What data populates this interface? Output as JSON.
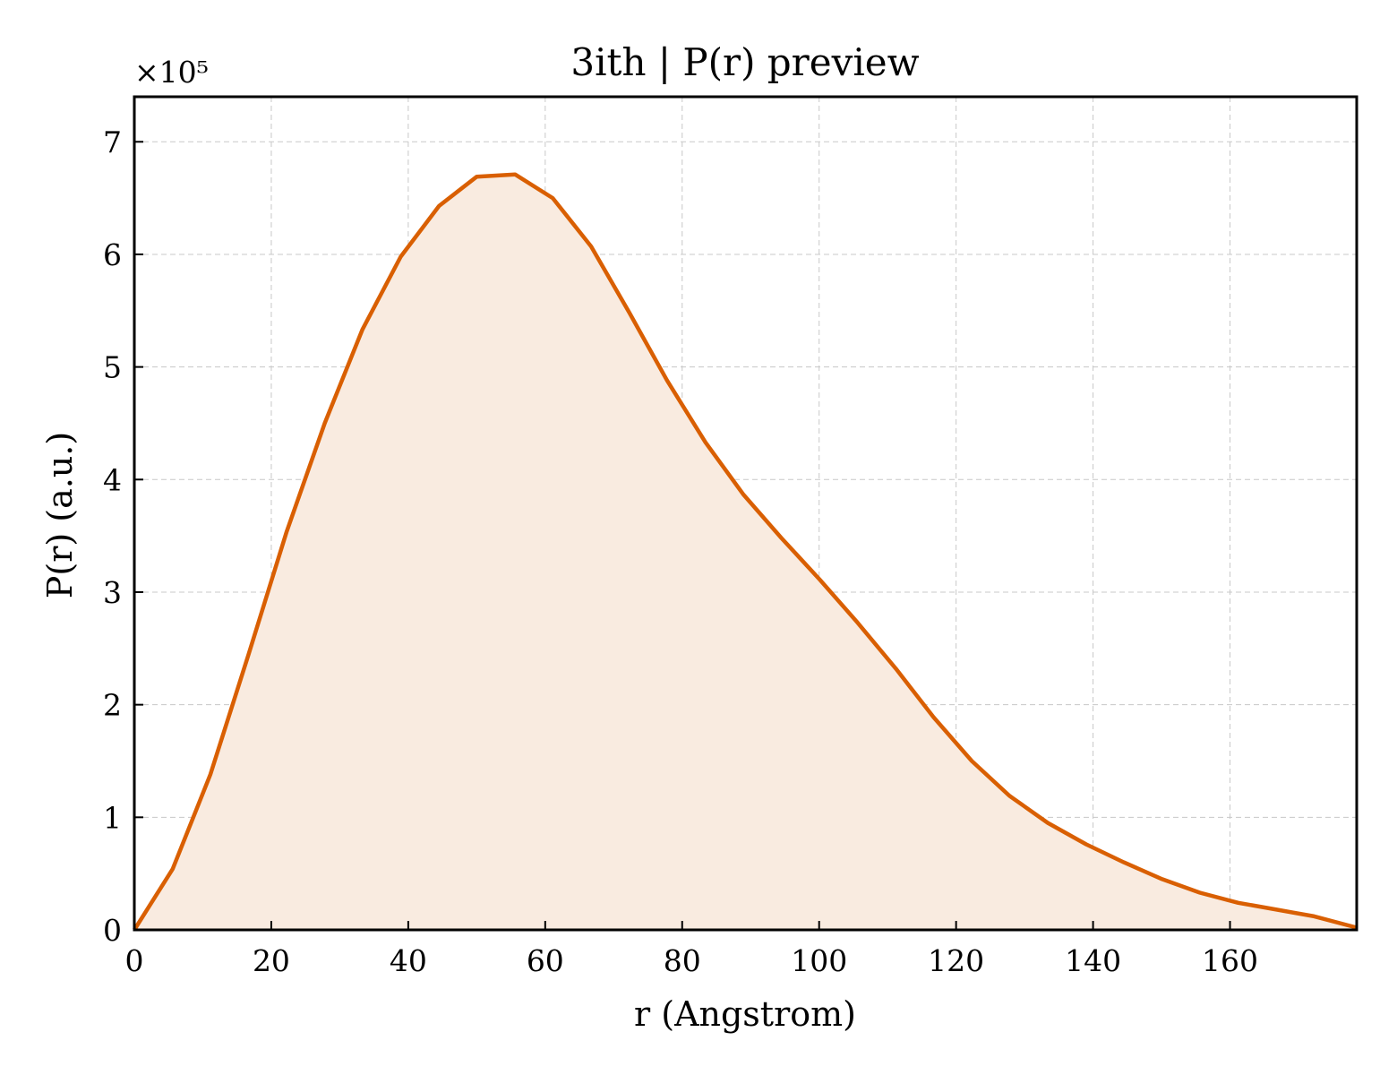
{
  "chart_data": {
    "type": "area",
    "title": "3ith | P(r) preview",
    "xlabel": "r (Angstrom)",
    "ylabel": "P(r) (a.u.)",
    "y_offset_text": "×10⁵",
    "y_multiplier": 100000,
    "xlim": [
      0,
      178.5
    ],
    "ylim": [
      0,
      7.4
    ],
    "xticks": [
      0,
      20,
      40,
      60,
      80,
      100,
      120,
      140,
      160
    ],
    "yticks": [
      0,
      1,
      2,
      3,
      4,
      5,
      6,
      7
    ],
    "grid": true,
    "line_color": "#d95f02",
    "fill_color": "#f9ebe0",
    "x": [
      0,
      5.6,
      11.1,
      16.7,
      22.2,
      27.8,
      33.3,
      38.9,
      44.5,
      50.0,
      55.6,
      61.1,
      66.7,
      72.3,
      77.8,
      83.4,
      88.9,
      94.5,
      100.1,
      105.6,
      111.2,
      116.7,
      122.3,
      127.8,
      133.4,
      139.0,
      144.5,
      150.1,
      155.6,
      161.2,
      166.8,
      172.3,
      178.5
    ],
    "y": [
      0.0,
      0.54,
      1.38,
      2.45,
      3.53,
      4.5,
      5.33,
      5.98,
      6.43,
      6.69,
      6.71,
      6.5,
      6.07,
      5.48,
      4.88,
      4.33,
      3.87,
      3.48,
      3.11,
      2.73,
      2.32,
      1.89,
      1.5,
      1.19,
      0.95,
      0.76,
      0.6,
      0.45,
      0.33,
      0.24,
      0.18,
      0.12,
      0.02
    ]
  }
}
